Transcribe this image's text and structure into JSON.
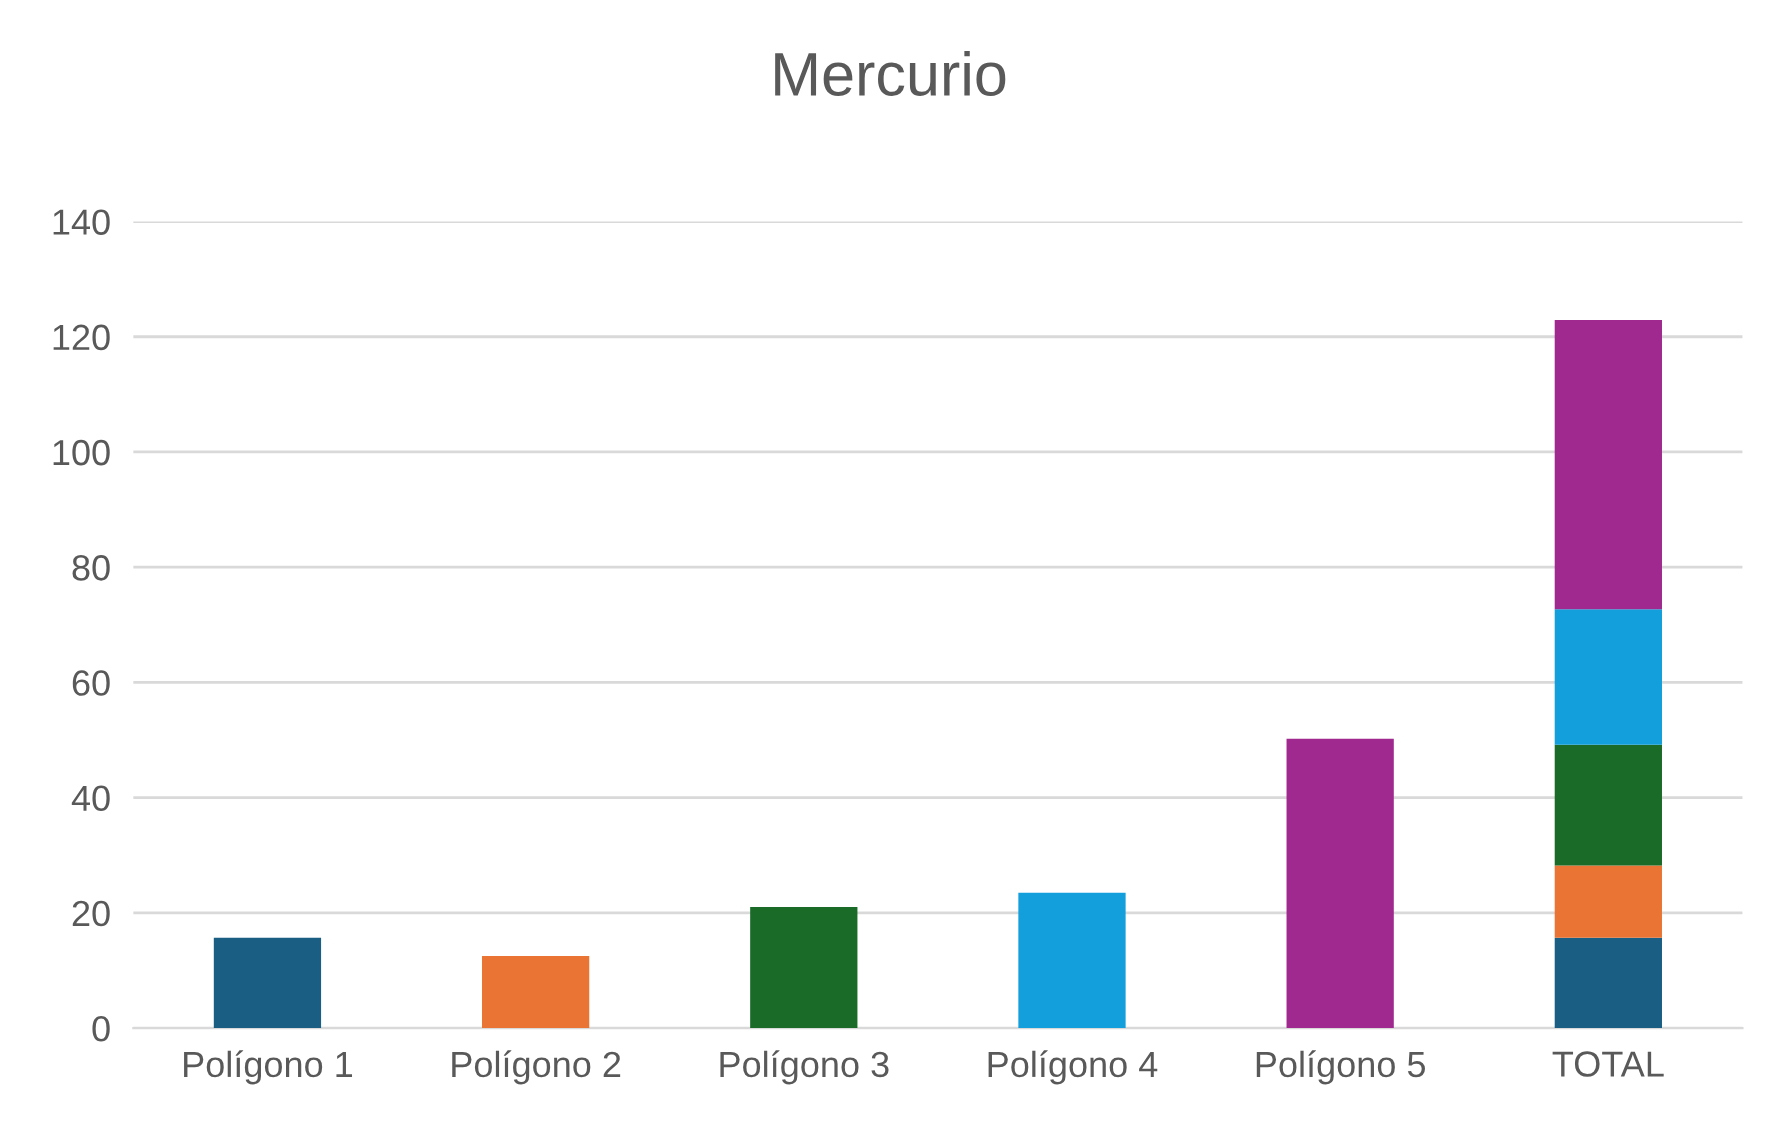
{
  "chart_data": {
    "type": "bar",
    "title": "Mercurio",
    "stacked": true,
    "categories": [
      "Polígono 1",
      "Polígono 2",
      "Polígono 3",
      "Polígono 4",
      "Polígono 5",
      "TOTAL"
    ],
    "series": [
      {
        "color": "#1b5e84",
        "values": [
          15.7,
          null,
          null,
          null,
          null,
          15.7
        ]
      },
      {
        "color": "#ea7434",
        "values": [
          null,
          12.5,
          null,
          null,
          null,
          12.5
        ]
      },
      {
        "color": "#1a6b27",
        "values": [
          null,
          null,
          21,
          null,
          null,
          21
        ]
      },
      {
        "color": "#139fdb",
        "values": [
          null,
          null,
          null,
          23.5,
          null,
          23.5
        ]
      },
      {
        "color": "#a0298f",
        "values": [
          null,
          null,
          null,
          null,
          50.2,
          50.2
        ]
      }
    ],
    "ylim": [
      0,
      140
    ],
    "yticks": [
      0,
      20,
      40,
      60,
      80,
      100,
      120,
      140
    ],
    "grid": "y",
    "legend": false
  }
}
